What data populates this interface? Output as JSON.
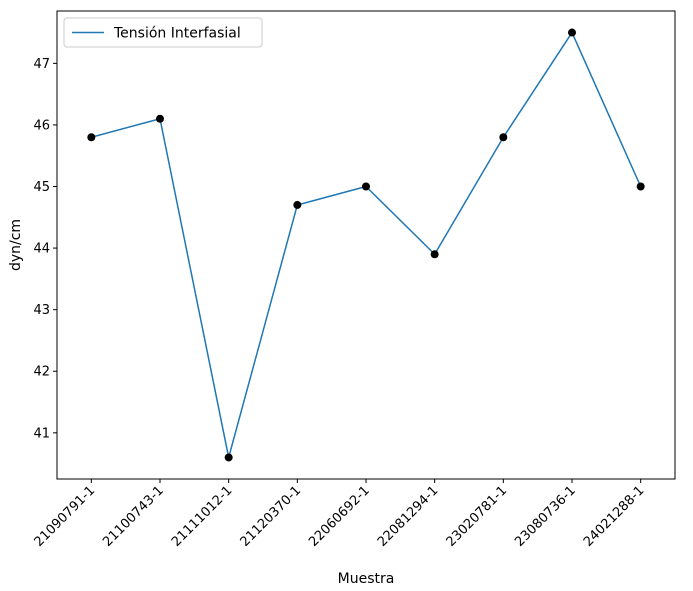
{
  "chart_data": {
    "type": "line",
    "categories": [
      "21090791-1",
      "21100743-1",
      "21111012-1",
      "21120370-1",
      "22060692-1",
      "22081294-1",
      "23020781-1",
      "23080736-1",
      "24021288-1"
    ],
    "series": [
      {
        "name": "Tensión Interfasial",
        "values": [
          45.8,
          46.1,
          40.6,
          44.7,
          45.0,
          43.9,
          45.8,
          47.5,
          45.0
        ],
        "color": "#1f77b4",
        "marker_color": "#000000"
      }
    ],
    "xlabel": "Muestra",
    "ylabel": "dyn/cm",
    "ylim": [
      40.25,
      47.85
    ],
    "yticks": [
      41,
      42,
      43,
      44,
      45,
      46,
      47
    ],
    "grid": false,
    "legend_position": "upper-left"
  }
}
